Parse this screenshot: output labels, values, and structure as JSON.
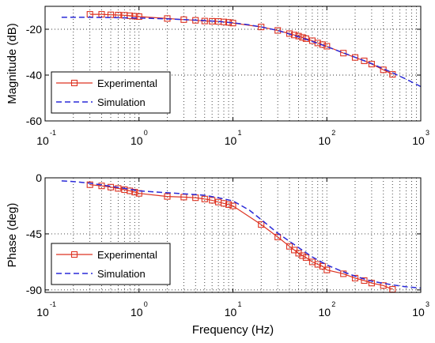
{
  "chart_data": [
    {
      "type": "line",
      "xscale": "log",
      "xlim": [
        0.1,
        1000
      ],
      "ylim": [
        -60,
        -10
      ],
      "ylabel": "Magnitude (dB)",
      "xlabel": "",
      "grid": true,
      "legend_position": "bottom-left",
      "yticks": [
        {
          "value": -20,
          "label": "-20"
        },
        {
          "value": -40,
          "label": "-40"
        },
        {
          "value": -60,
          "label": "-60"
        }
      ],
      "xticks": [
        {
          "value": 0.1,
          "base": "10",
          "exp": "-1"
        },
        {
          "value": 1,
          "base": "10",
          "exp": "0"
        },
        {
          "value": 10,
          "base": "10",
          "exp": "1"
        },
        {
          "value": 100,
          "base": "10",
          "exp": "2"
        },
        {
          "value": 1000,
          "base": "10",
          "exp": "3"
        }
      ],
      "series": [
        {
          "name": "Experimental",
          "color": "#dd3322",
          "marker": "square",
          "x": [
            0.3,
            0.4,
            0.5,
            0.6,
            0.7,
            0.8,
            0.9,
            1.0,
            2,
            3,
            4,
            5,
            6,
            7,
            8,
            9,
            10,
            20,
            30,
            40,
            45,
            50,
            55,
            60,
            70,
            80,
            90,
            100,
            150,
            200,
            250,
            300,
            400,
            500
          ],
          "y": [
            -13.5,
            -13.5,
            -13.7,
            -13.8,
            -13.9,
            -14.1,
            -14.3,
            -14.5,
            -15.3,
            -15.8,
            -16.1,
            -16.4,
            -16.5,
            -16.6,
            -16.8,
            -17.0,
            -17.3,
            -19.0,
            -20.5,
            -21.9,
            -22.5,
            -23.0,
            -23.6,
            -24.1,
            -25.0,
            -26.0,
            -26.7,
            -27.4,
            -30.4,
            -32.3,
            -33.8,
            -35.2,
            -37.7,
            -39.7
          ]
        },
        {
          "name": "Simulation",
          "color": "#2a2ad8",
          "dash": true,
          "x": [
            0.15,
            0.2,
            0.3,
            0.5,
            0.7,
            1,
            2,
            3,
            5,
            7,
            10,
            15,
            20,
            30,
            50,
            70,
            100,
            150,
            200,
            300,
            500,
            700,
            1000
          ],
          "y": [
            -14.8,
            -14.8,
            -14.8,
            -14.9,
            -15.0,
            -15.1,
            -15.5,
            -15.8,
            -16.2,
            -16.6,
            -17.2,
            -18.1,
            -19.0,
            -20.5,
            -23.3,
            -25.3,
            -27.6,
            -30.3,
            -32.2,
            -35.0,
            -39.0,
            -41.8,
            -45.0
          ]
        }
      ]
    },
    {
      "type": "line",
      "xscale": "log",
      "xlim": [
        0.1,
        1000
      ],
      "ylim": [
        -92,
        0
      ],
      "ylabel": "Phase (deg)",
      "xlabel": "Frequency (Hz)",
      "grid": true,
      "legend_position": "bottom-left",
      "yticks": [
        {
          "value": 0,
          "label": "0"
        },
        {
          "value": -45,
          "label": "-45"
        },
        {
          "value": -90,
          "label": "-90"
        }
      ],
      "xticks": [
        {
          "value": 0.1,
          "base": "10",
          "exp": "-1"
        },
        {
          "value": 1,
          "base": "10",
          "exp": "0"
        },
        {
          "value": 10,
          "base": "10",
          "exp": "1"
        },
        {
          "value": 100,
          "base": "10",
          "exp": "2"
        },
        {
          "value": 1000,
          "base": "10",
          "exp": "3"
        }
      ],
      "series": [
        {
          "name": "Experimental",
          "color": "#dd3322",
          "marker": "square",
          "x": [
            0.3,
            0.4,
            0.5,
            0.6,
            0.7,
            0.8,
            0.9,
            1.0,
            2,
            3,
            4,
            5,
            6,
            7,
            8,
            9,
            10,
            20,
            30,
            40,
            45,
            50,
            55,
            60,
            70,
            80,
            90,
            100,
            150,
            200,
            250,
            300,
            400,
            500
          ],
          "y": [
            -5.5,
            -6.5,
            -7.5,
            -8.5,
            -9.5,
            -10.5,
            -11.5,
            -12.5,
            -15.0,
            -15.5,
            -16.0,
            -17.0,
            -18.0,
            -19.5,
            -20.5,
            -21.5,
            -22.5,
            -37.5,
            -47.5,
            -55.0,
            -58.0,
            -60.5,
            -62.5,
            -64.0,
            -67.5,
            -69.5,
            -71.0,
            -74.0,
            -77.0,
            -80.5,
            -82.5,
            -84.5,
            -86.5,
            -89.5
          ]
        },
        {
          "name": "Simulation",
          "color": "#2a2ad8",
          "dash": true,
          "x": [
            0.15,
            0.2,
            0.3,
            0.5,
            0.7,
            1,
            2,
            3,
            5,
            7,
            10,
            15,
            20,
            30,
            50,
            70,
            100,
            150,
            200,
            300,
            500,
            700,
            1000
          ],
          "y": [
            -2.5,
            -3.0,
            -4.3,
            -6.8,
            -8.5,
            -10.5,
            -12.0,
            -12.8,
            -14.0,
            -16.0,
            -18.5,
            -26.0,
            -33.5,
            -44.5,
            -56.0,
            -63.5,
            -70.0,
            -75.5,
            -79.0,
            -83.0,
            -86.0,
            -87.5,
            -88.5
          ]
        }
      ]
    }
  ]
}
